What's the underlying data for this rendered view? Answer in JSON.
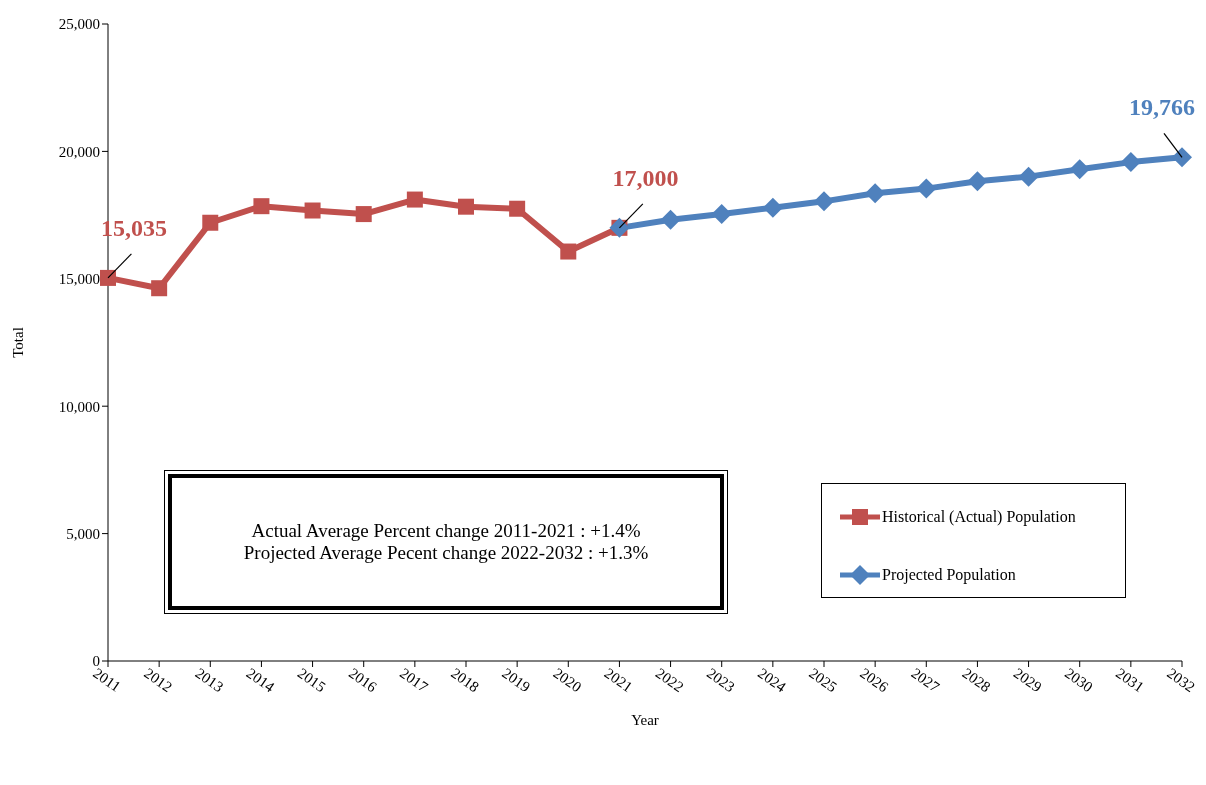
{
  "chart_data": {
    "type": "line",
    "xlabel": "Year",
    "ylabel": "Total",
    "categories": [
      "2011",
      "2012",
      "2013",
      "2014",
      "2015",
      "2016",
      "2017",
      "2018",
      "2019",
      "2020",
      "2021",
      "2022",
      "2023",
      "2024",
      "2025",
      "2026",
      "2027",
      "2028",
      "2029",
      "2030",
      "2031",
      "2032"
    ],
    "series": [
      {
        "name": "Historical (Actual) Population",
        "color": "#c0504d",
        "marker": "square",
        "values": [
          15035,
          14630,
          17200,
          17850,
          17680,
          17540,
          18110,
          17830,
          17750,
          16070,
          17000,
          null,
          null,
          null,
          null,
          null,
          null,
          null,
          null,
          null,
          null,
          null
        ],
        "value_labels": [
          "15,035",
          null,
          null,
          null,
          null,
          null,
          null,
          null,
          null,
          null,
          "17,000",
          null,
          null,
          null,
          null,
          null,
          null,
          null,
          null,
          null,
          null,
          null
        ]
      },
      {
        "name": "Projected Population",
        "color": "#4f81bd",
        "marker": "diamond",
        "values": [
          null,
          null,
          null,
          null,
          null,
          null,
          null,
          null,
          null,
          null,
          17000,
          17320,
          17540,
          17790,
          18040,
          18360,
          18540,
          18830,
          19010,
          19300,
          19580,
          19766
        ],
        "value_labels": [
          null,
          null,
          null,
          null,
          null,
          null,
          null,
          null,
          null,
          null,
          null,
          null,
          null,
          null,
          null,
          null,
          null,
          null,
          null,
          null,
          null,
          "19,766"
        ]
      }
    ],
    "ylim": [
      0,
      25000
    ],
    "yticks": [
      0,
      {
        "value": 5000,
        "label": "5,000"
      },
      {
        "value": 10000,
        "label": "10,000"
      },
      {
        "value": 15000,
        "label": "15,000"
      },
      {
        "value": 20000,
        "label": "20,000"
      },
      {
        "value": 25000,
        "label": "25,000"
      }
    ],
    "legend": "right",
    "annotations": [
      "Actual Average Percent change 2011-2021 : +1.4%",
      "Projected Average Pecent change 2022-2032 : +1.3%"
    ]
  }
}
